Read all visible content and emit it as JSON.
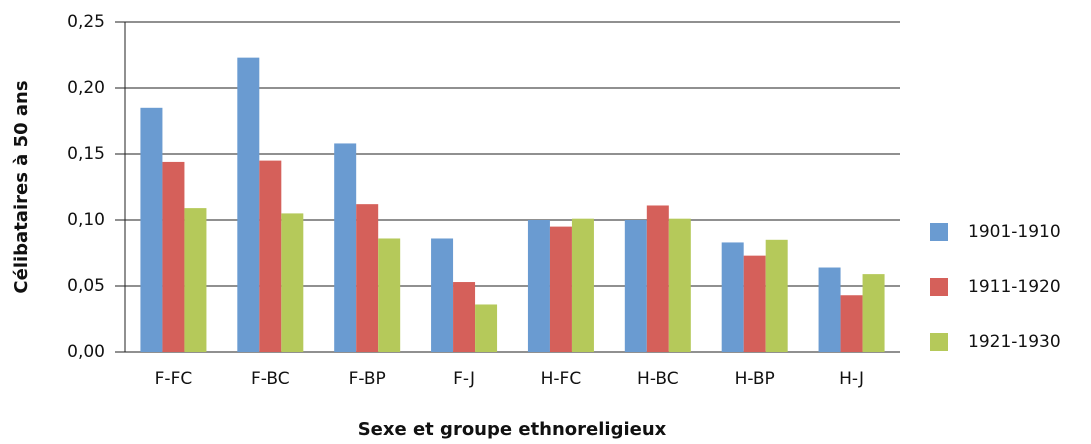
{
  "chart_data": {
    "type": "bar",
    "x_label": "Sexe et groupe ethnoreligieux",
    "y_label": "Célibataires à 50 ans",
    "categories": [
      "F-FC",
      "F-BC",
      "F-BP",
      "F-J",
      "H-FC",
      "H-BC",
      "H-BP",
      "H-J"
    ],
    "series": [
      {
        "name": "1901-1910",
        "color": "#6a9bd1",
        "values": [
          0.185,
          0.223,
          0.158,
          0.086,
          0.1,
          0.1,
          0.083,
          0.064
        ]
      },
      {
        "name": "1911-1920",
        "color": "#d5605a",
        "values": [
          0.144,
          0.145,
          0.112,
          0.053,
          0.095,
          0.111,
          0.073,
          0.043
        ]
      },
      {
        "name": "1921-1930",
        "color": "#b5c95a",
        "values": [
          0.109,
          0.105,
          0.086,
          0.036,
          0.101,
          0.101,
          0.085,
          0.059
        ]
      }
    ],
    "ylim": [
      0,
      0.25
    ],
    "yticks": [
      {
        "value": 0,
        "label": "0,00"
      },
      {
        "value": 0.05,
        "label": "0,05"
      },
      {
        "value": 0.1,
        "label": "0,10"
      },
      {
        "value": 0.15,
        "label": "0,15"
      },
      {
        "value": 0.2,
        "label": "0,20"
      },
      {
        "value": 0.25,
        "label": "0,25"
      }
    ],
    "grid": true,
    "legend": "right"
  }
}
